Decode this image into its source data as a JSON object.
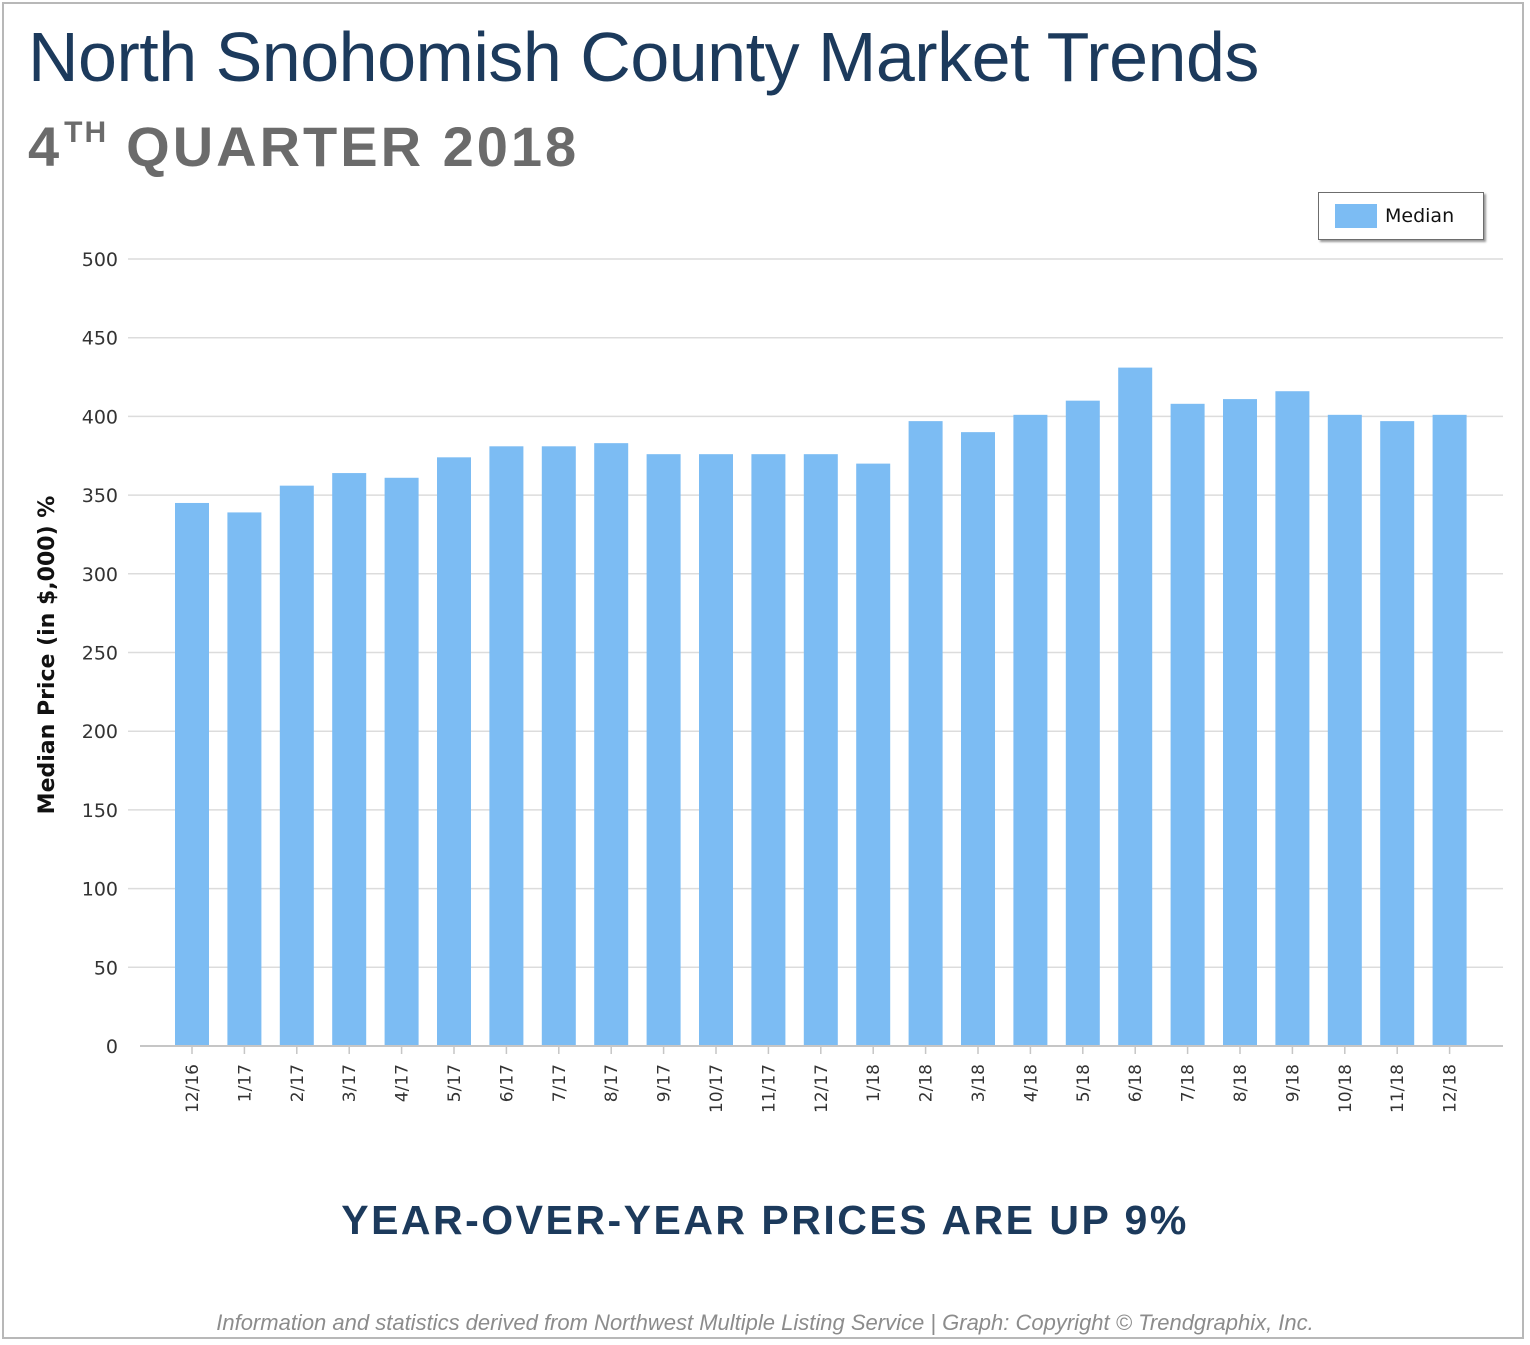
{
  "header": {
    "title": "North Snohomish County Market Trends",
    "quarter_number": "4",
    "quarter_suffix": "TH",
    "quarter_rest": "QUARTER 2018"
  },
  "legend": {
    "label": "Median",
    "color": "#7cbcf3"
  },
  "headline": "YEAR-OVER-YEAR PRICES ARE UP 9%",
  "footer": "Information and statistics derived from Northwest Multiple Listing Service  |  Graph: Copyright © Trendgraphix, Inc.",
  "chart_data": {
    "type": "bar",
    "title": "",
    "xlabel": "",
    "ylabel": "Median Price (in $,000) %",
    "ylim": [
      0,
      500
    ],
    "yticks": [
      0,
      50,
      100,
      150,
      200,
      250,
      300,
      350,
      400,
      450,
      500
    ],
    "grid": true,
    "legend_position": "top-right",
    "bar_color": "#7cbcf3",
    "categories": [
      "12/16",
      "1/17",
      "2/17",
      "3/17",
      "4/17",
      "5/17",
      "6/17",
      "7/17",
      "8/17",
      "9/17",
      "10/17",
      "11/17",
      "12/17",
      "1/18",
      "2/18",
      "3/18",
      "4/18",
      "5/18",
      "6/18",
      "7/18",
      "8/18",
      "9/18",
      "10/18",
      "11/18",
      "12/18"
    ],
    "series": [
      {
        "name": "Median",
        "values": [
          345,
          339,
          356,
          364,
          361,
          374,
          381,
          381,
          383,
          376,
          376,
          376,
          376,
          370,
          397,
          390,
          401,
          410,
          431,
          408,
          411,
          416,
          401,
          397,
          401
        ]
      }
    ]
  }
}
